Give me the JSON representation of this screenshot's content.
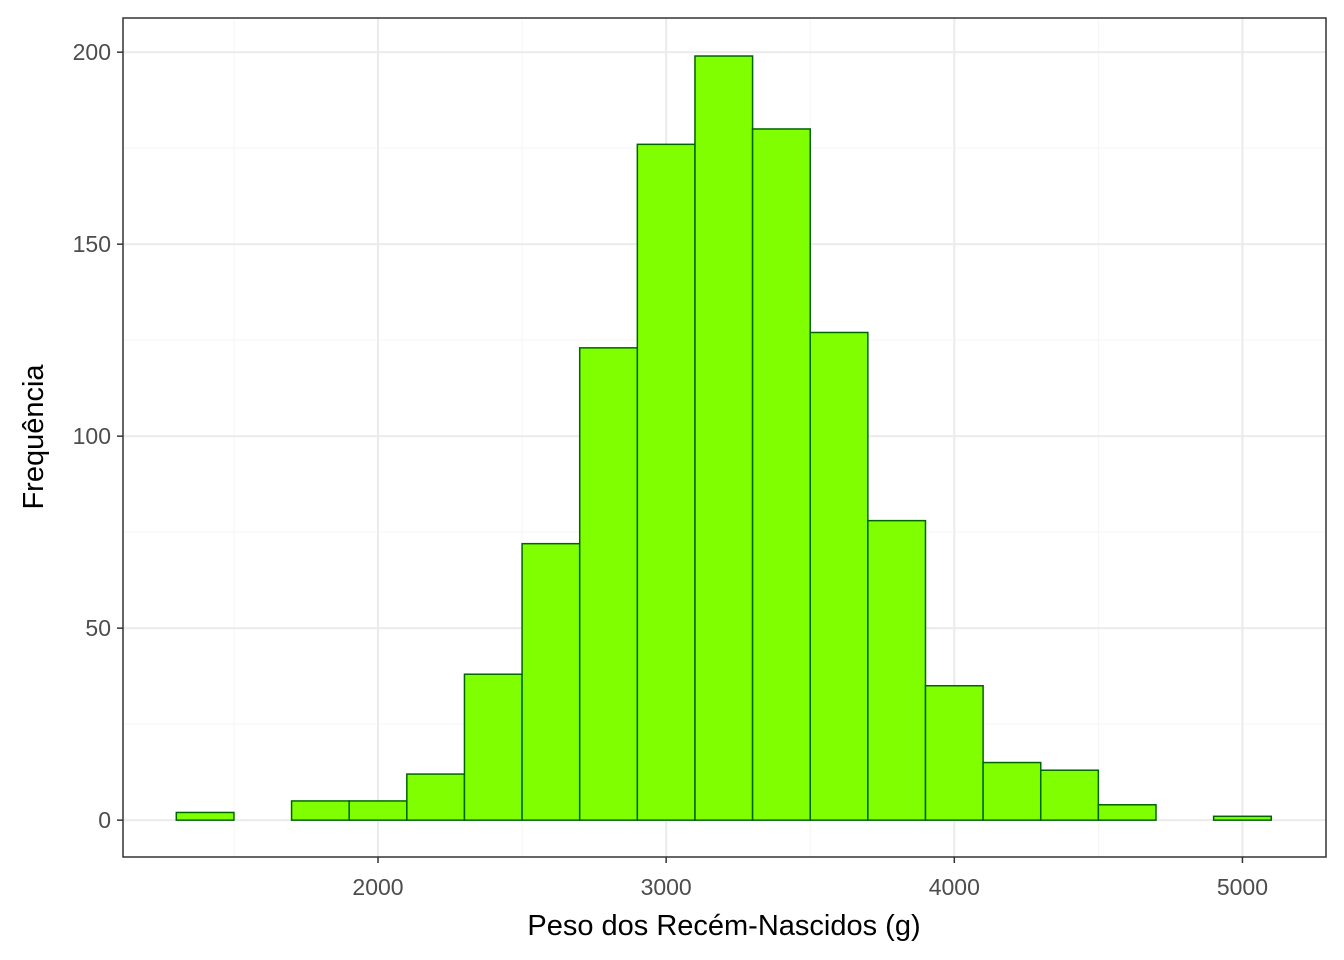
{
  "chart_data": {
    "type": "bar",
    "subtype": "histogram",
    "title": "",
    "xlabel": "Peso dos Recém-Nascidos (g)",
    "ylabel": "Frequência",
    "bin_width": 200,
    "bins": [
      {
        "x0": 1300,
        "x1": 1500,
        "count": 2
      },
      {
        "x0": 1500,
        "x1": 1700,
        "count": 0
      },
      {
        "x0": 1700,
        "x1": 1900,
        "count": 5
      },
      {
        "x0": 1900,
        "x1": 2100,
        "count": 5
      },
      {
        "x0": 2100,
        "x1": 2300,
        "count": 12
      },
      {
        "x0": 2300,
        "x1": 2500,
        "count": 38
      },
      {
        "x0": 2500,
        "x1": 2700,
        "count": 72
      },
      {
        "x0": 2700,
        "x1": 2900,
        "count": 123
      },
      {
        "x0": 2900,
        "x1": 3100,
        "count": 176
      },
      {
        "x0": 3100,
        "x1": 3300,
        "count": 199
      },
      {
        "x0": 3300,
        "x1": 3500,
        "count": 180
      },
      {
        "x0": 3500,
        "x1": 3700,
        "count": 127
      },
      {
        "x0": 3700,
        "x1": 3900,
        "count": 78
      },
      {
        "x0": 3900,
        "x1": 4100,
        "count": 35
      },
      {
        "x0": 4100,
        "x1": 4300,
        "count": 15
      },
      {
        "x0": 4300,
        "x1": 4500,
        "count": 13
      },
      {
        "x0": 4500,
        "x1": 4700,
        "count": 4
      },
      {
        "x0": 4700,
        "x1": 4900,
        "count": 0
      },
      {
        "x0": 4900,
        "x1": 5100,
        "count": 1
      }
    ],
    "xlim": [
      1115,
      5290
    ],
    "ylim": [
      -9.6,
      208.9
    ],
    "x_ticks": [
      "2000",
      "3000",
      "4000",
      "5000"
    ],
    "y_ticks": [
      "0",
      "50",
      "100",
      "150",
      "200"
    ],
    "grid": true,
    "legend": "none",
    "colors": {
      "fill": "#7FFF00",
      "outline": "#006400",
      "grid_major": "#EBEBEB",
      "grid_minor": "#F5F5F5",
      "panel_border": "#333333"
    }
  }
}
